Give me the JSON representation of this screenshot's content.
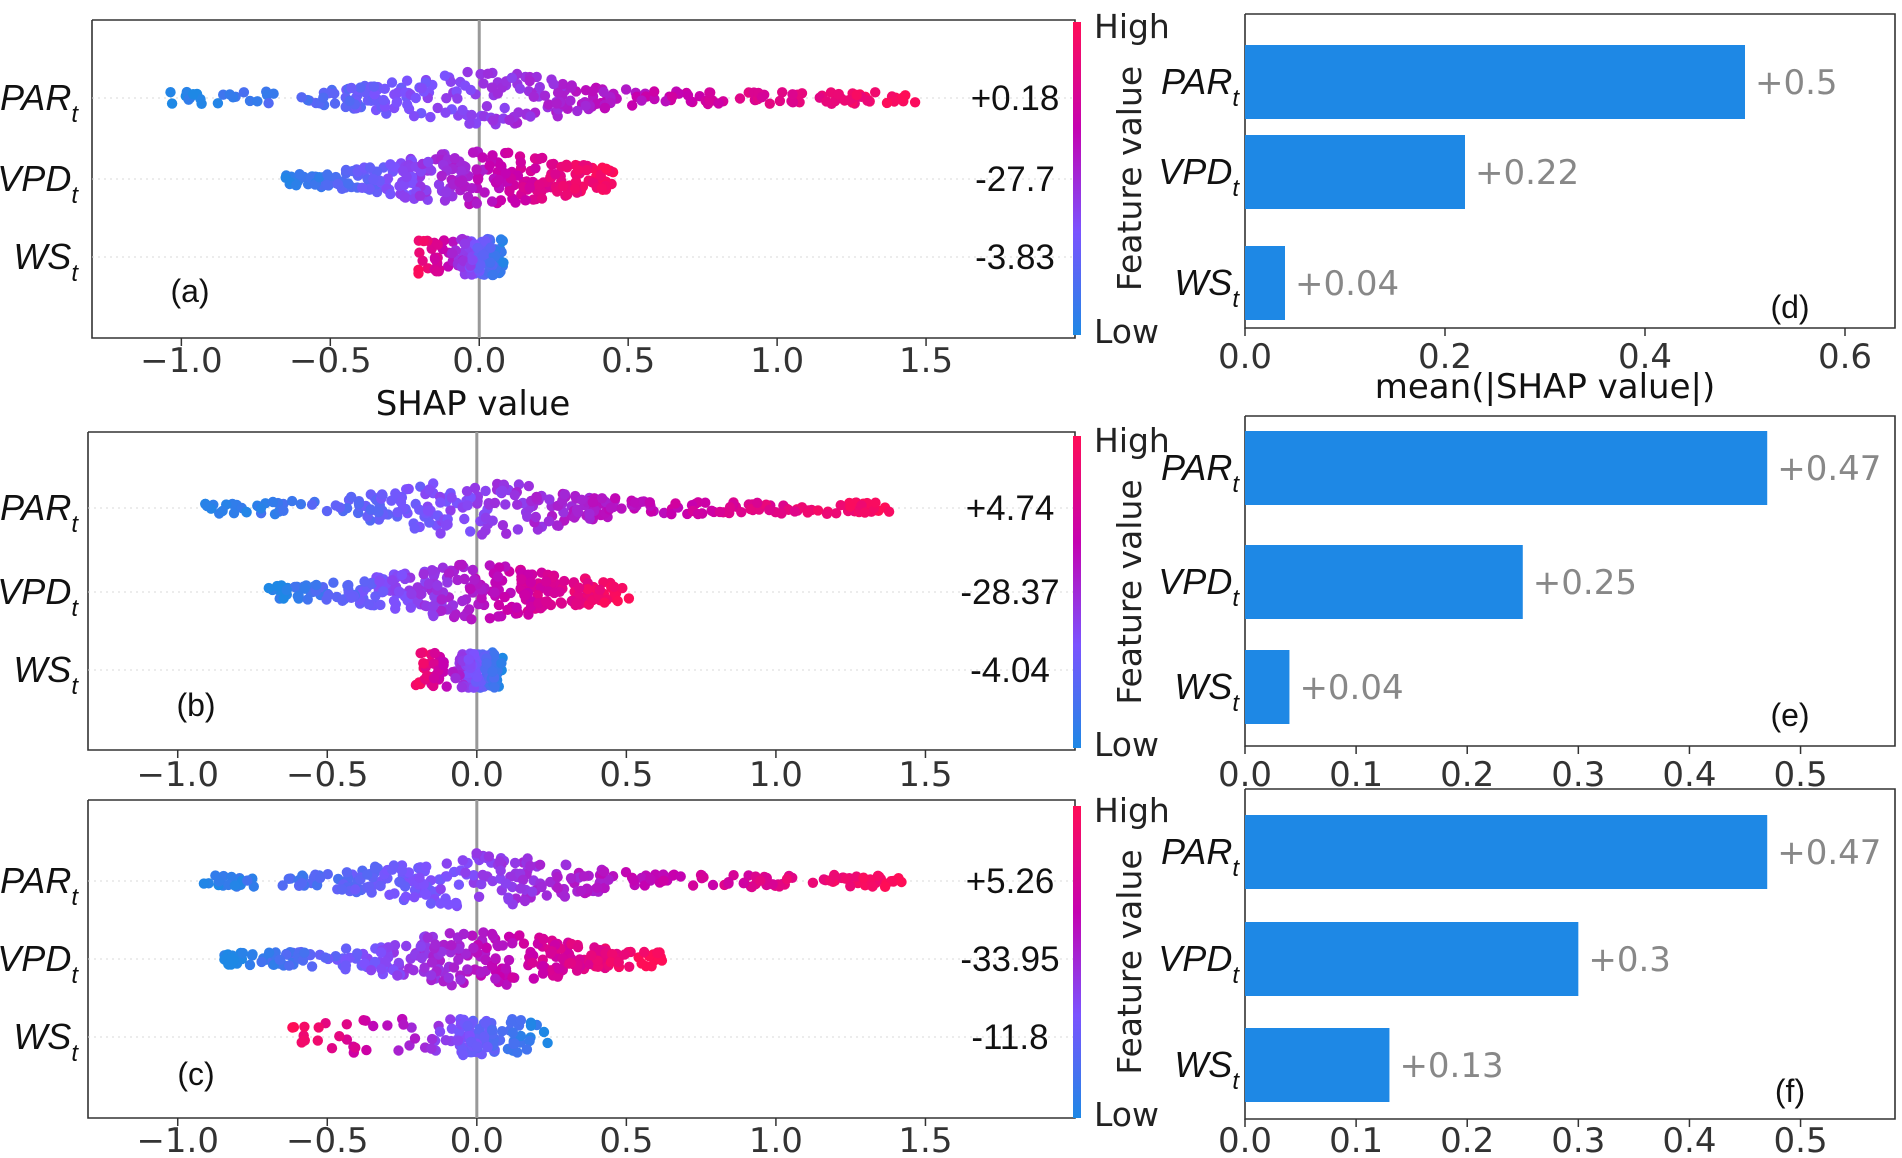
{
  "chart_data": [
    {
      "type": "scatter",
      "panel_label": "(a)",
      "title": "",
      "xlabel": "SHAP value",
      "ylabel": "",
      "xlim": [
        -1.3,
        2.0
      ],
      "xticks": [
        -1.0,
        -0.5,
        0.0,
        0.5,
        1.0,
        1.5
      ],
      "xtick_labels": [
        "−1.0",
        "−0.5",
        "0.0",
        "0.5",
        "1.0",
        "1.5"
      ],
      "colorbar": {
        "label": "Feature value",
        "high": "High",
        "low": "Low"
      },
      "features": [
        {
          "name": "PAR",
          "sub": "t",
          "annotation": "+0.18",
          "range": [
            -1.05,
            1.47
          ],
          "color_trend": "increasing"
        },
        {
          "name": "VPD",
          "sub": "t",
          "annotation": "-27.7",
          "range": [
            -0.65,
            0.45
          ],
          "color_trend": "increasing"
        },
        {
          "name": "WS",
          "sub": "t",
          "annotation": "-3.83",
          "range": [
            -0.22,
            0.09
          ],
          "color_trend": "decreasing"
        }
      ]
    },
    {
      "type": "scatter",
      "panel_label": "(b)",
      "title": "",
      "xlabel": "",
      "ylabel": "",
      "xlim": [
        -1.3,
        2.0
      ],
      "xticks": [
        -1.0,
        -0.5,
        0.0,
        0.5,
        1.0,
        1.5
      ],
      "xtick_labels": [
        "−1.0",
        "−0.5",
        "0.0",
        "0.5",
        "1.0",
        "1.5"
      ],
      "colorbar": {
        "label": "Feature value",
        "high": "High",
        "low": "Low"
      },
      "features": [
        {
          "name": "PAR",
          "sub": "t",
          "annotation": "+4.74",
          "range": [
            -0.92,
            1.38
          ],
          "color_trend": "increasing"
        },
        {
          "name": "VPD",
          "sub": "t",
          "annotation": "-28.37",
          "range": [
            -0.7,
            0.51
          ],
          "color_trend": "increasing"
        },
        {
          "name": "WS",
          "sub": "t",
          "annotation": "-4.04",
          "range": [
            -0.21,
            0.09
          ],
          "color_trend": "decreasing"
        }
      ]
    },
    {
      "type": "scatter",
      "panel_label": "(c)",
      "title": "",
      "xlabel": "",
      "ylabel": "",
      "xlim": [
        -1.3,
        2.0
      ],
      "xticks": [
        -1.0,
        -0.5,
        0.0,
        0.5,
        1.0,
        1.5
      ],
      "xtick_labels": [
        "−1.0",
        "−0.5",
        "0.0",
        "0.5",
        "1.0",
        "1.5"
      ],
      "colorbar": {
        "label": "Feature value",
        "high": "High",
        "low": "Low"
      },
      "features": [
        {
          "name": "PAR",
          "sub": "t",
          "annotation": "+5.26",
          "range": [
            -0.94,
            1.42
          ],
          "color_trend": "increasing"
        },
        {
          "name": "VPD",
          "sub": "t",
          "annotation": "-33.95",
          "range": [
            -0.85,
            0.62
          ],
          "color_trend": "increasing"
        },
        {
          "name": "WS",
          "sub": "t",
          "annotation": "-11.8",
          "range": [
            -0.62,
            0.24
          ],
          "color_trend": "decreasing"
        }
      ]
    },
    {
      "type": "bar",
      "orientation": "horizontal",
      "panel_label": "(d)",
      "xlabel": "mean(|SHAP value|)",
      "ylabel": "",
      "xlim": [
        0,
        0.65
      ],
      "xticks": [
        0.0,
        0.2,
        0.4,
        0.6
      ],
      "xtick_labels": [
        "0.0",
        "0.2",
        "0.4",
        "0.6"
      ],
      "categories": [
        {
          "name": "PAR",
          "sub": "t"
        },
        {
          "name": "VPD",
          "sub": "t"
        },
        {
          "name": "WS",
          "sub": "t"
        }
      ],
      "values": [
        0.5,
        0.22,
        0.04
      ],
      "value_labels": [
        "+0.5",
        "+0.22",
        "+0.04"
      ]
    },
    {
      "type": "bar",
      "orientation": "horizontal",
      "panel_label": "(e)",
      "xlabel": "",
      "ylabel": "",
      "xlim": [
        0,
        0.585
      ],
      "xticks": [
        0.0,
        0.1,
        0.2,
        0.3,
        0.4,
        0.5
      ],
      "xtick_labels": [
        "0.0",
        "0.1",
        "0.2",
        "0.3",
        "0.4",
        "0.5"
      ],
      "categories": [
        {
          "name": "PAR",
          "sub": "t"
        },
        {
          "name": "VPD",
          "sub": "t"
        },
        {
          "name": "WS",
          "sub": "t"
        }
      ],
      "values": [
        0.47,
        0.25,
        0.04
      ],
      "value_labels": [
        "+0.47",
        "+0.25",
        "+0.04"
      ]
    },
    {
      "type": "bar",
      "orientation": "horizontal",
      "panel_label": "(f)",
      "xlabel": "",
      "ylabel": "",
      "xlim": [
        0,
        0.585
      ],
      "xticks": [
        0.0,
        0.1,
        0.2,
        0.3,
        0.4,
        0.5
      ],
      "xtick_labels": [
        "0.0",
        "0.1",
        "0.2",
        "0.3",
        "0.4",
        "0.5"
      ],
      "categories": [
        {
          "name": "PAR",
          "sub": "t"
        },
        {
          "name": "VPD",
          "sub": "t"
        },
        {
          "name": "WS",
          "sub": "t"
        }
      ],
      "values": [
        0.47,
        0.3,
        0.13
      ],
      "value_labels": [
        "+0.47",
        "+0.3",
        "+0.13"
      ]
    }
  ],
  "colors": {
    "bar": "#1e88e5",
    "low": "#1e88e5",
    "high": "#ff0d57",
    "zero_line": "#999999",
    "bar_label": "#888888"
  }
}
